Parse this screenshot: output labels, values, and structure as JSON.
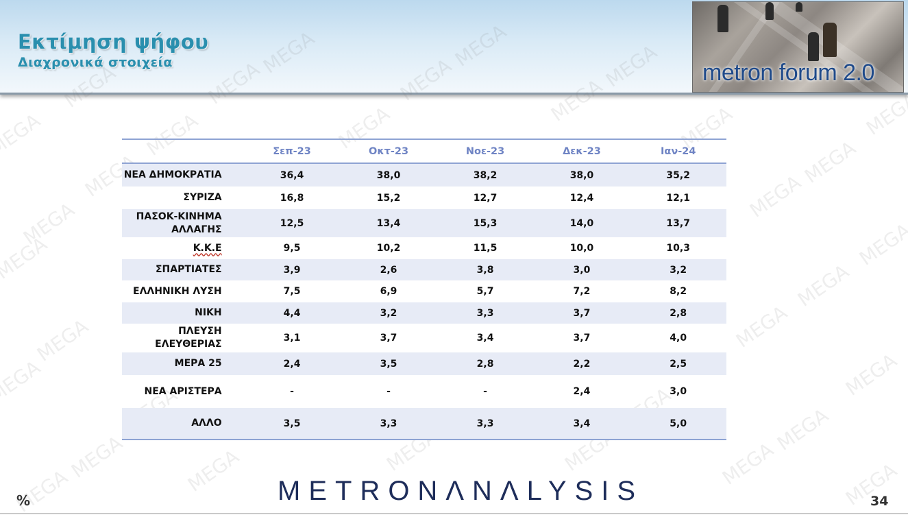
{
  "header": {
    "title": "Εκτίμηση ψήφου",
    "subtitle": "Διαχρονικά στοιχεία",
    "logo_text": "metron forum 2.0"
  },
  "watermark_text": "MEGA",
  "table": {
    "columns": [
      "",
      "Σεπ-23",
      "Οκτ-23",
      "Νοε-23",
      "Δεκ-23",
      "Ιαν-24"
    ],
    "rows": [
      {
        "party": "ΝΕΑ  ΔΗΜΟΚΡΑΤΙΑ",
        "values": [
          "36,4",
          "38,0",
          "38,2",
          "38,0",
          "35,2"
        ]
      },
      {
        "party": "ΣΥΡΙΖΑ",
        "values": [
          "16,8",
          "15,2",
          "12,7",
          "12,4",
          "12,1"
        ]
      },
      {
        "party": "ΠΑΣΟΚ-ΚΙΝΗΜΑ ΑΛΛΑΓΗΣ",
        "values": [
          "12,5",
          "13,4",
          "15,3",
          "14,0",
          "13,7"
        ]
      },
      {
        "party": "Κ.Κ.Ε",
        "values": [
          "9,5",
          "10,2",
          "11,5",
          "10,0",
          "10,3"
        ]
      },
      {
        "party": "ΣΠΑΡΤΙΑΤΕΣ",
        "values": [
          "3,9",
          "2,6",
          "3,8",
          "3,0",
          "3,2"
        ]
      },
      {
        "party": "ΕΛΛΗΝΙΚΗ  ΛΥΣΗ",
        "values": [
          "7,5",
          "6,9",
          "5,7",
          "7,2",
          "8,2"
        ]
      },
      {
        "party": "ΝΙΚΗ",
        "values": [
          "4,4",
          "3,2",
          "3,3",
          "3,7",
          "2,8"
        ]
      },
      {
        "party": "ΠΛΕΥΣΗ ΕΛΕΥΘΕΡΙΑΣ",
        "values": [
          "3,1",
          "3,7",
          "3,4",
          "3,7",
          "4,0"
        ]
      },
      {
        "party": "ΜΕΡΑ 25",
        "values": [
          "2,4",
          "3,5",
          "2,8",
          "2,2",
          "2,5"
        ]
      },
      {
        "party": "ΝΕΑ ΑΡΙΣΤΕΡΑ",
        "values": [
          "-",
          "-",
          "-",
          "2,4",
          "3,0"
        ]
      },
      {
        "party": "ΑΛΛΟ",
        "values": [
          "3,5",
          "3,3",
          "3,3",
          "3,4",
          "5,0"
        ]
      }
    ]
  },
  "footer": {
    "brand_part1": "METRON",
    "brand_part2": "ΛNΛLYSIS",
    "unit": "%",
    "page_number": "34"
  }
}
